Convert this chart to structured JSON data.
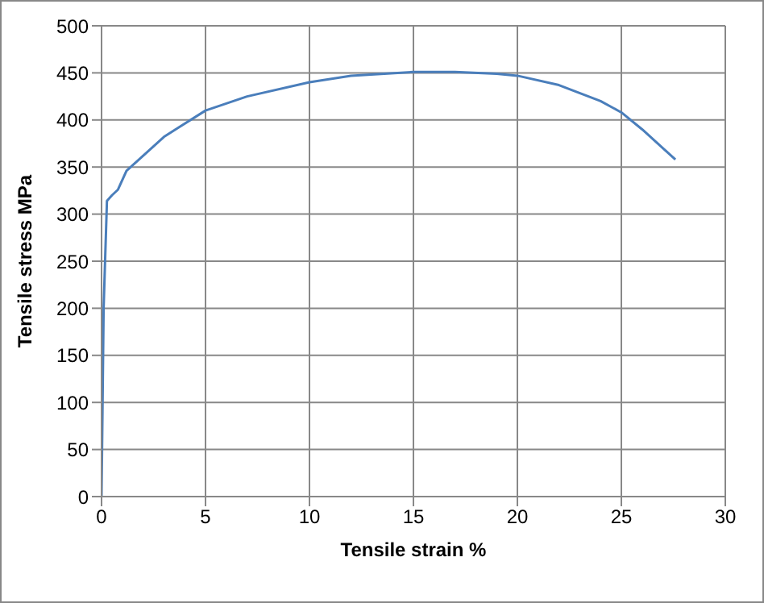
{
  "chart_data": {
    "type": "line",
    "xlabel": "Tensile strain %",
    "ylabel": "Tensile stress MPa",
    "x": [
      0,
      0.1,
      0.26,
      0.5,
      0.79,
      1.2,
      2.1,
      3,
      3.7,
      5,
      7,
      10,
      12,
      15,
      17,
      19,
      20,
      22,
      24,
      25,
      26,
      27,
      27.6
    ],
    "series": [
      {
        "color": "#4a7ebb",
        "values": [
          0,
          200,
          314,
          320,
          326,
          346,
          364,
          382,
          392,
          410,
          425,
          440,
          447,
          451,
          451,
          449,
          447,
          437,
          420,
          408,
          390,
          370,
          358
        ]
      }
    ],
    "xlim": [
      0,
      30
    ],
    "xticks": [
      0,
      5,
      10,
      15,
      20,
      25,
      30
    ],
    "ylim": [
      0,
      500
    ],
    "yticks": [
      0,
      50,
      100,
      150,
      200,
      250,
      300,
      350,
      400,
      450,
      500
    ],
    "grid": true,
    "legend": false,
    "marker": "none",
    "line_style": "solid"
  }
}
